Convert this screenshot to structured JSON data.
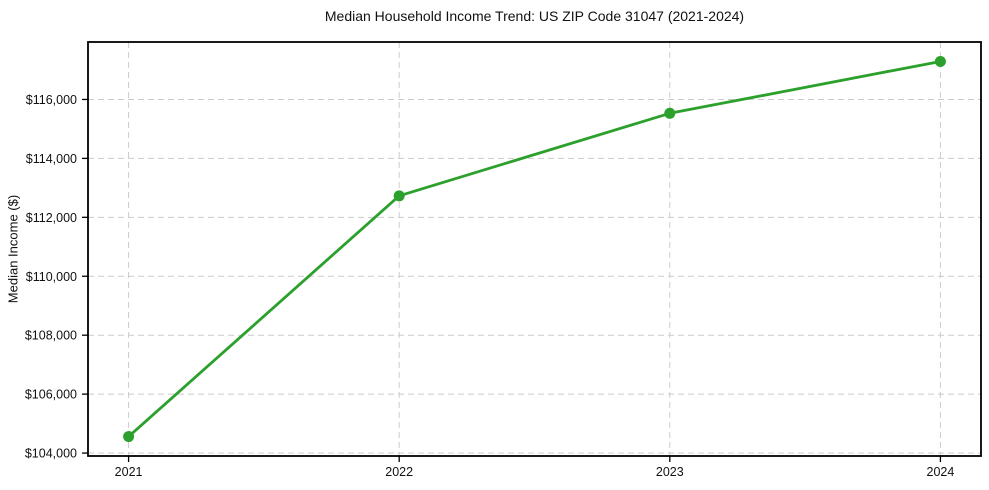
{
  "chart_data": {
    "type": "line",
    "title": "Median Household Income Trend: US ZIP Code 31047 (2021-2024)",
    "xlabel": "",
    "ylabel": "Median Income ($)",
    "x": [
      2021,
      2022,
      2023,
      2024
    ],
    "values": [
      104560,
      112730,
      115530,
      117290
    ],
    "line_color": "#2ca02c",
    "marker": "circle",
    "marker_color": "#2ca02c",
    "xlim": [
      2020.85,
      2024.15
    ],
    "ylim": [
      103900,
      117950
    ],
    "xticks": {
      "values": [
        2021,
        2022,
        2023,
        2024
      ],
      "labels": [
        "2021",
        "2022",
        "2023",
        "2024"
      ]
    },
    "yticks": {
      "values": [
        104000,
        106000,
        108000,
        110000,
        112000,
        114000,
        116000
      ],
      "labels": [
        "$104,000",
        "$106,000",
        "$108,000",
        "$110,000",
        "$112,000",
        "$114,000",
        "$116,000"
      ]
    },
    "grid": {
      "visible": true,
      "line_style": "dashed",
      "color": "#cccccc"
    },
    "spine_color": "#000000",
    "tick_color": "#000000",
    "legend_visible": false
  }
}
